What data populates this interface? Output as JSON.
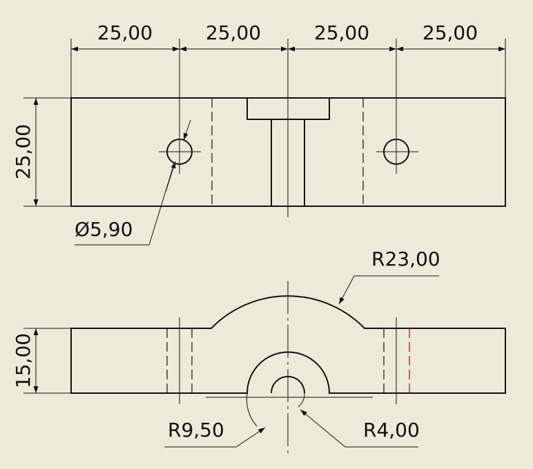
{
  "drawing": {
    "top_view": {
      "horizontal_dimensions": [
        "25,00",
        "25,00",
        "25,00",
        "25,00"
      ],
      "vertical_dimension": "25,00",
      "hole_diameter": "Ø5,90"
    },
    "front_view": {
      "vertical_dimension": "15,00",
      "arc_radius": "R23,00",
      "outer_radius": "R9,50",
      "inner_radius": "R4,00"
    }
  },
  "colors": {
    "background": "#ecead9",
    "line": "#111111",
    "highlight_hidden_line": "#cc0000"
  }
}
